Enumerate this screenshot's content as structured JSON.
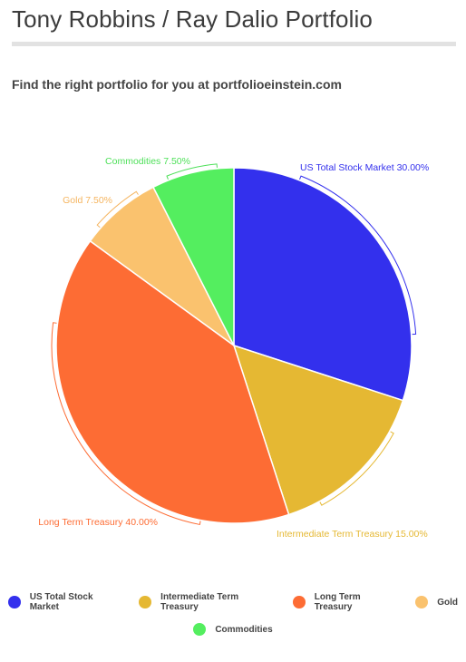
{
  "header": {
    "title": "Tony Robbins / Ray Dalio Portfolio",
    "subtitle": "Find the right portfolio for you at portfolioeinstein.com"
  },
  "chart_data": {
    "type": "pie",
    "categories": [
      "US Total Stock Market",
      "Intermediate Term Treasury",
      "Long Term Treasury",
      "Gold",
      "Commodities"
    ],
    "values": [
      30.0,
      15.0,
      40.0,
      7.5,
      7.5
    ],
    "value_labels": [
      "30.00%",
      "15.00%",
      "40.00%",
      "7.50%",
      "7.50%"
    ],
    "colors": [
      "#3330ed",
      "#e5b833",
      "#fd6c34",
      "#fac26e",
      "#54ee5f"
    ],
    "label_colors": [
      "#3330ed",
      "#e5b833",
      "#fd6c34",
      "#f5b560",
      "#4fe05a"
    ],
    "title": "Tony Robbins / Ray Dalio Portfolio",
    "legend_position": "bottom"
  }
}
